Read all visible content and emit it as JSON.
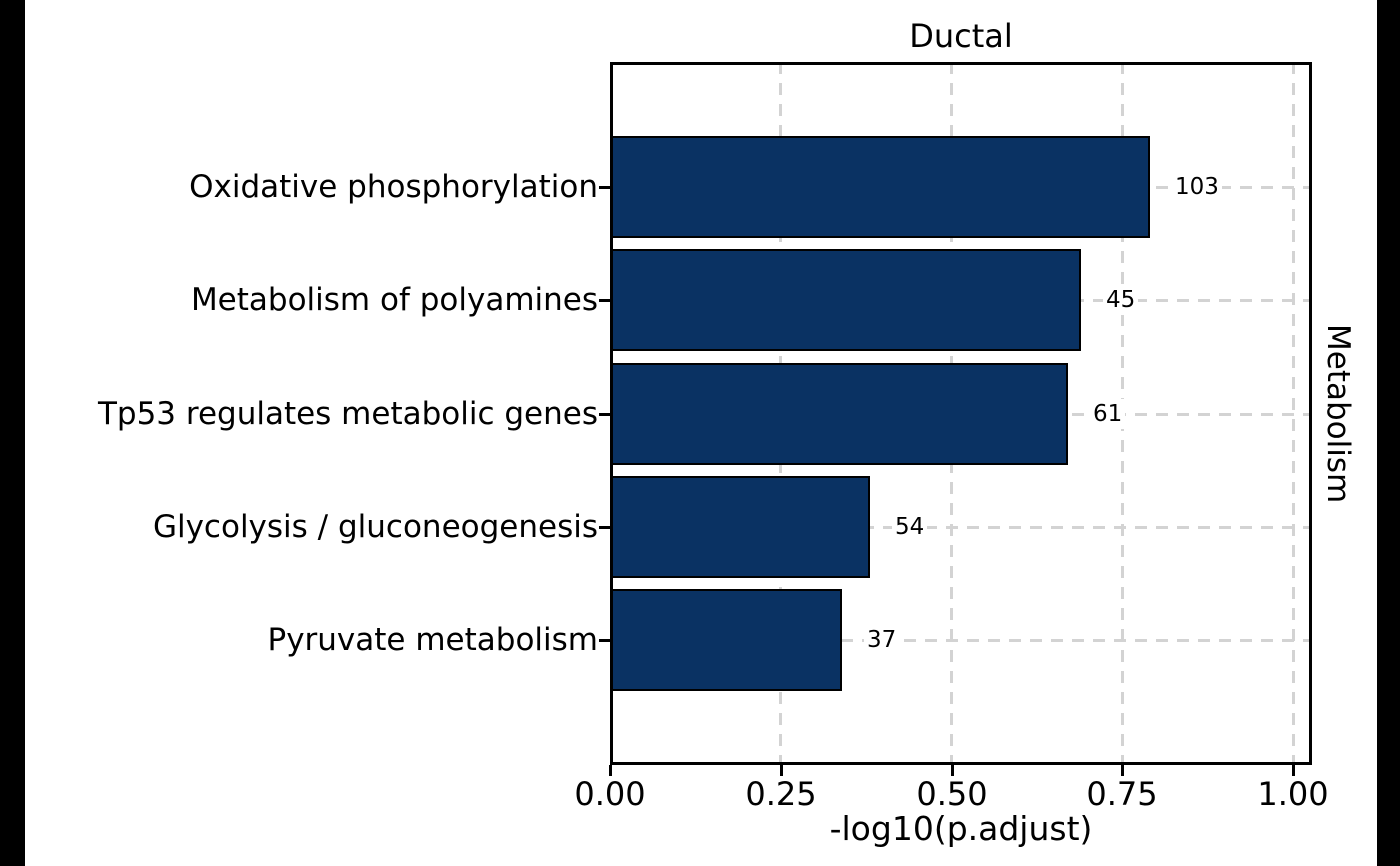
{
  "chart_data": {
    "type": "bar",
    "orientation": "horizontal",
    "title": "Ductal",
    "strip_label": "Metabolism",
    "xlabel": "-log10(p.adjust)",
    "ylabel": "",
    "categories": [
      "Oxidative phosphorylation",
      "Metabolism of polyamines",
      "Tp53 regulates metabolic genes",
      "Glycolysis / gluconeogenesis",
      "Pyruvate metabolism"
    ],
    "values": [
      0.79,
      0.69,
      0.67,
      0.38,
      0.34
    ],
    "bar_labels": [
      "103",
      "45",
      "61",
      "54",
      "37"
    ],
    "x_ticks": [
      0,
      0.25,
      0.5,
      0.75,
      1.0
    ],
    "x_tick_labels": [
      "0.00",
      "0.25",
      "0.50",
      "0.75",
      "1.00"
    ],
    "xlim": [
      0,
      1.03
    ],
    "grid": "major-dashed",
    "legend_position": "none",
    "colors": {
      "bar_fill": "#0a3263",
      "bar_border": "#000000",
      "grid": "#d3d3d3",
      "panel_border": "#000000",
      "text": "#000000",
      "background": "#ffffff",
      "letterbox": "#000000"
    }
  }
}
